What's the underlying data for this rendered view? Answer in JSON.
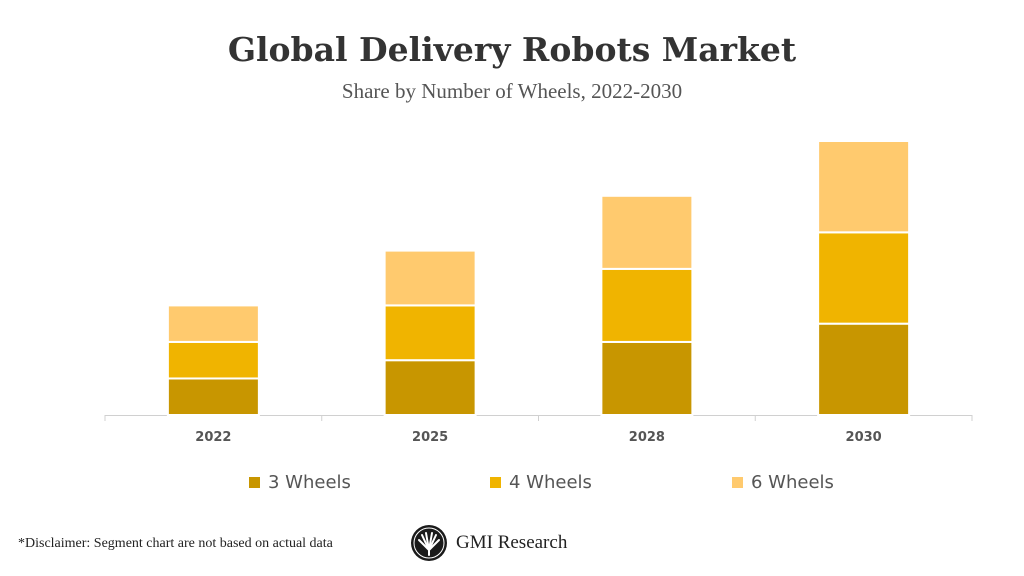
{
  "chart_data": {
    "type": "bar",
    "stacked": true,
    "title": "Global Delivery Robots Market",
    "subtitle": "Share by Number of Wheels, 2022-2030",
    "categories": [
      "2022",
      "2025",
      "2028",
      "2030"
    ],
    "series": [
      {
        "name": "3 Wheels",
        "color": "#C89600",
        "values": [
          2,
          3,
          4,
          5
        ]
      },
      {
        "name": "4 Wheels",
        "color": "#F0B400",
        "values": [
          2,
          3,
          4,
          5
        ]
      },
      {
        "name": "6 Wheels",
        "color": "#FFCA6E",
        "values": [
          2,
          3,
          4,
          5
        ]
      }
    ],
    "ylim": [
      0,
      15
    ],
    "grid": false,
    "legend": "bottom"
  },
  "footer": {
    "disclaimer": "*Disclaimer:  Segment chart are not based on actual data",
    "brand": "GMI Research"
  }
}
